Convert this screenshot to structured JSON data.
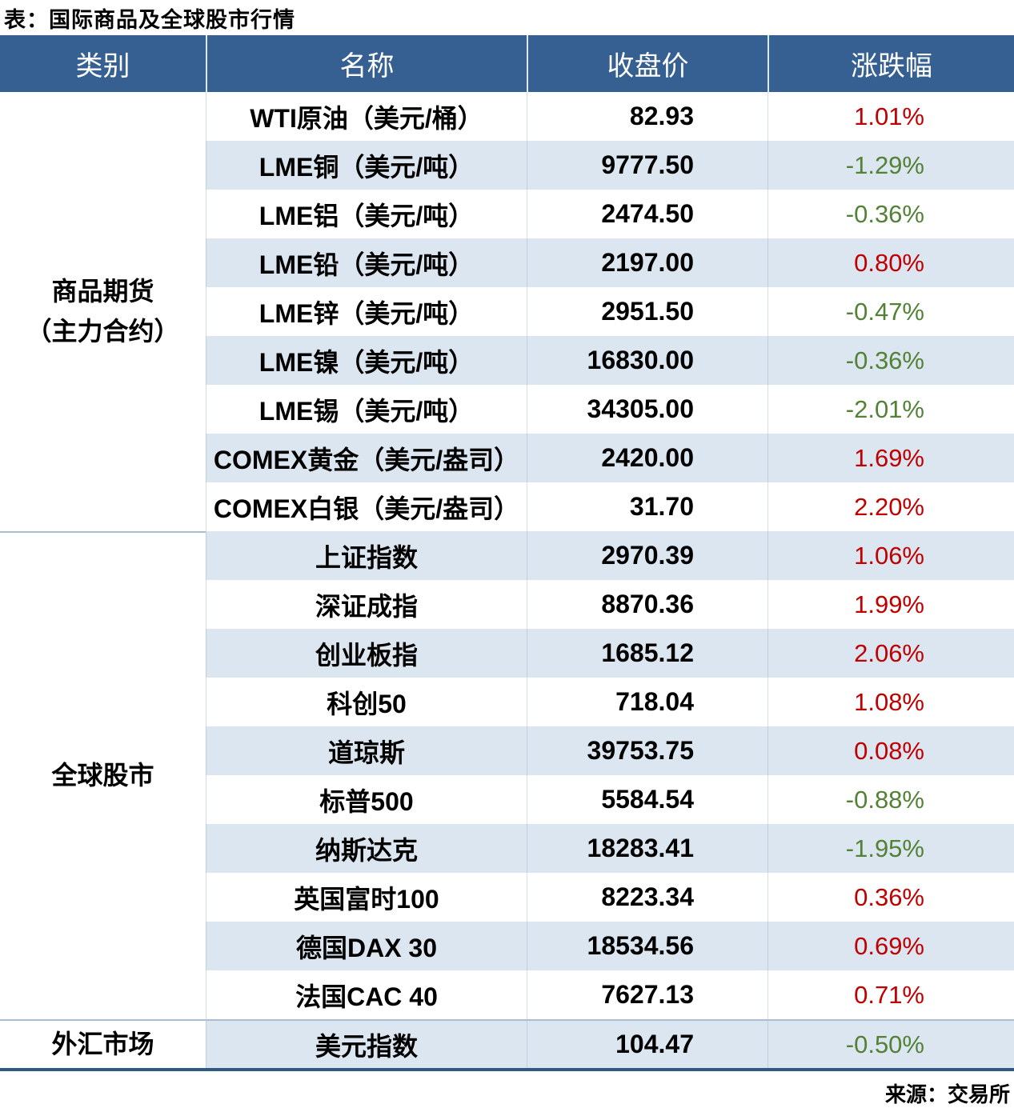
{
  "title": "表：国际商品及全球股市行情",
  "source": "来源：交易所",
  "colors": {
    "header_bg": "#366092",
    "stripe_bg": "#DCE6F1",
    "up_red": "#C00000",
    "down_green": "#538135",
    "section_separator": "#A9BCD0",
    "bottom_rule": "#2E5984"
  },
  "table": {
    "headers": [
      "类别",
      "名称",
      "收盘价",
      "涨跌幅"
    ],
    "sections": [
      {
        "category": "商品期货（主力合约）",
        "category_lines": [
          "商品期货",
          "（主力合约）"
        ],
        "separator": "",
        "rows": [
          {
            "name": "WTI原油（美元/桶）",
            "close": "82.93",
            "change": "1.01%",
            "direction": "up"
          },
          {
            "name": "LME铜（美元/吨）",
            "close": "9777.50",
            "change": "-1.29%",
            "direction": "down"
          },
          {
            "name": "LME铝（美元/吨）",
            "close": "2474.50",
            "change": "-0.36%",
            "direction": "down"
          },
          {
            "name": "LME铅（美元/吨）",
            "close": "2197.00",
            "change": "0.80%",
            "direction": "up"
          },
          {
            "name": "LME锌（美元/吨）",
            "close": "2951.50",
            "change": "-0.47%",
            "direction": "down"
          },
          {
            "name": "LME镍（美元/吨）",
            "close": "16830.00",
            "change": "-0.36%",
            "direction": "down"
          },
          {
            "name": "LME锡（美元/吨）",
            "close": "34305.00",
            "change": "-2.01%",
            "direction": "down"
          },
          {
            "name": "COMEX黄金（美元/盎司）",
            "close": "2420.00",
            "change": "1.69%",
            "direction": "up"
          },
          {
            "name": "COMEX白银（美元/盎司）",
            "close": "31.70",
            "change": "2.20%",
            "direction": "up"
          }
        ]
      },
      {
        "category": "全球股市",
        "category_lines": [
          "全球股市"
        ],
        "separator": "col1",
        "rows": [
          {
            "name": "上证指数",
            "close": "2970.39",
            "change": "1.06%",
            "direction": "up"
          },
          {
            "name": "深证成指",
            "close": "8870.36",
            "change": "1.99%",
            "direction": "up"
          },
          {
            "name": "创业板指",
            "close": "1685.12",
            "change": "2.06%",
            "direction": "up"
          },
          {
            "name": "科创50",
            "close": "718.04",
            "change": "1.08%",
            "direction": "up"
          },
          {
            "name": "道琼斯",
            "close": "39753.75",
            "change": "0.08%",
            "direction": "up"
          },
          {
            "name": "标普500",
            "close": "5584.54",
            "change": "-0.88%",
            "direction": "down"
          },
          {
            "name": "纳斯达克",
            "close": "18283.41",
            "change": "-1.95%",
            "direction": "down"
          },
          {
            "name": "英国富时100",
            "close": "8223.34",
            "change": "0.36%",
            "direction": "up"
          },
          {
            "name": "德国DAX 30",
            "close": "18534.56",
            "change": "0.69%",
            "direction": "up"
          },
          {
            "name": "法国CAC 40",
            "close": "7627.13",
            "change": "0.71%",
            "direction": "up"
          }
        ]
      },
      {
        "category": "外汇市场",
        "category_lines": [
          "外汇市场"
        ],
        "separator": "full",
        "rows": [
          {
            "name": "美元指数",
            "close": "104.47",
            "change": "-0.50%",
            "direction": "down"
          }
        ]
      }
    ]
  }
}
